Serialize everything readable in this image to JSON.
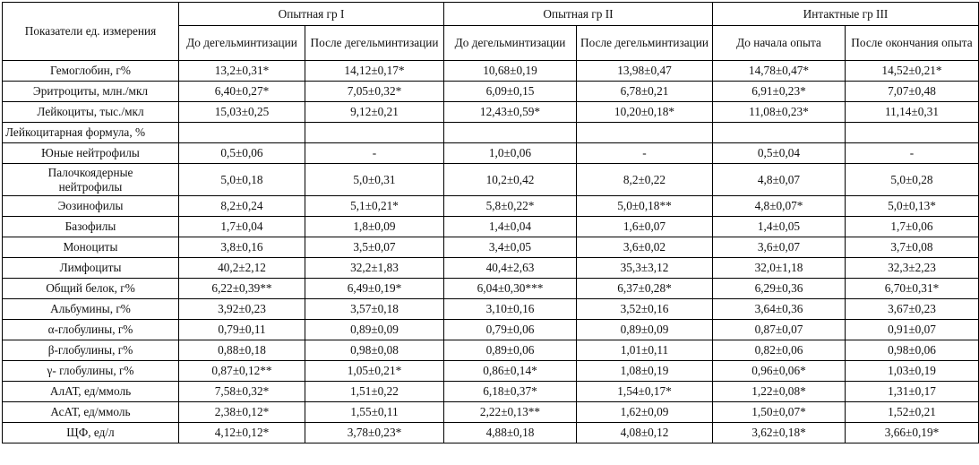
{
  "header": {
    "indicator": "Показатели ед. измерения",
    "groups": [
      "Опытная гр I",
      "Опытная гр II",
      "Интактные гр III"
    ],
    "subcolumns": [
      "До дегельминтизации",
      "После дегельминтизации",
      "До дегельминтизации",
      "После дегельминтизации",
      "До начала опыта",
      "После окончания опыта"
    ]
  },
  "rows": [
    {
      "label": "Гемоглобин, г%",
      "values": [
        "13,2±0,31*",
        "14,12±0,17*",
        "10,68±0,19",
        "13,98±0,47",
        "14,78±0,47*",
        "14,52±0,21*"
      ]
    },
    {
      "label": "Эритроциты, млн./мкл",
      "values": [
        "6,40±0,27*",
        "7,05±0,32*",
        "6,09±0,15",
        "6,78±0,21",
        "6,91±0,23*",
        "7,07±0,48"
      ]
    },
    {
      "label": "Лейкоциты, тыс./мкл",
      "values": [
        "15,03±0,25",
        "9,12±0,21",
        "12,43±0,59*",
        "10,20±0,18*",
        "11,08±0,23*",
        "11,14±0,31"
      ]
    },
    {
      "label": "Лейкоцитарная формула, %",
      "values": [
        "",
        "",
        "",
        "",
        "",
        ""
      ]
    },
    {
      "label": "Юные нейтрофилы",
      "values": [
        "0,5±0,06",
        "-",
        "1,0±0,06",
        "-",
        "0,5±0,04",
        "-"
      ]
    },
    {
      "label": "Палочкоядерные нейтрофилы",
      "values": [
        "5,0±0,18",
        "5,0±0,31",
        "10,2±0,42",
        "8,2±0,22",
        "4,8±0,07",
        "5,0±0,28"
      ]
    },
    {
      "label": "Эозинофилы",
      "values": [
        "8,2±0,24",
        "5,1±0,21*",
        "5,8±0,22*",
        "5,0±0,18**",
        "4,8±0,07*",
        "5,0±0,13*"
      ]
    },
    {
      "label": "Базофилы",
      "values": [
        "1,7±0,04",
        "1,8±0,09",
        "1,4±0,04",
        "1,6±0,07",
        "1,4±0,05",
        "1,7±0,06"
      ]
    },
    {
      "label": "Моноциты",
      "values": [
        "3,8±0,16",
        "3,5±0,07",
        "3,4±0,05",
        "3,6±0,02",
        "3,6±0,07",
        "3,7±0,08"
      ]
    },
    {
      "label": "Лимфоциты",
      "values": [
        "40,2±2,12",
        "32,2±1,83",
        "40,4±2,63",
        "35,3±3,12",
        "32,0±1,18",
        "32,3±2,23"
      ]
    },
    {
      "label": "Общий белок, г%",
      "values": [
        "6,22±0,39**",
        "6,49±0,19*",
        "6,04±0,30***",
        "6,37±0,28*",
        "6,29±0,36",
        "6,70±0,31*"
      ]
    },
    {
      "label": "Альбумины, г%",
      "values": [
        "3,92±0,23",
        "3,57±0,18",
        "3,10±0,16",
        "3,52±0,16",
        "3,64±0,36",
        "3,67±0,23"
      ]
    },
    {
      "label": "α-глобулины, г%",
      "values": [
        "0,79±0,11",
        "0,89±0,09",
        "0,79±0,06",
        "0,89±0,09",
        "0,87±0,07",
        "0,91±0,07"
      ]
    },
    {
      "label": "β-глобулины, г%",
      "values": [
        "0,88±0,18",
        "0,98±0,08",
        "0,89±0,06",
        "1,01±0,11",
        "0,82±0,06",
        "0,98±0,06"
      ]
    },
    {
      "label": "γ- глобулины, г%",
      "values": [
        "0,87±0,12**",
        "1,05±0,21*",
        "0,86±0,14*",
        "1,08±0,19",
        "0,96±0,06*",
        "1,03±0,19"
      ]
    },
    {
      "label": "АлАТ, ед/ммоль",
      "values": [
        "7,58±0,32*",
        "1,51±0,22",
        "6,18±0,37*",
        "1,54±0,17*",
        "1,22±0,08*",
        "1,31±0,17"
      ]
    },
    {
      "label": "АсАТ, ед/ммоль",
      "values": [
        "2,38±0,12*",
        "1,55±0,11",
        "2,22±0,13**",
        "1,62±0,09",
        "1,50±0,07*",
        "1,52±0,21"
      ]
    },
    {
      "label": "ЩФ, ед/л",
      "values": [
        "4,12±0,12*",
        "3,78±0,23*",
        "4,88±0,18",
        "4,08±0,12",
        "3,62±0,18*",
        "3,66±0,19*"
      ]
    }
  ]
}
